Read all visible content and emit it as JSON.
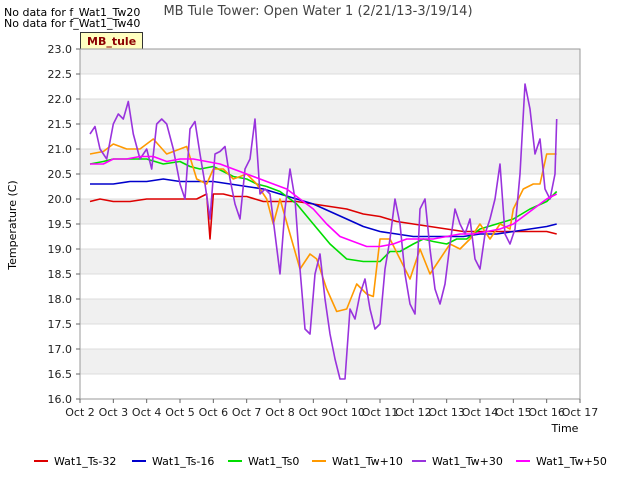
{
  "notes": [
    "No data for f_Wat1_Tw20",
    "No data for f_Wat1_Tw40"
  ],
  "badge": "MB_tule",
  "chart_data": {
    "type": "line",
    "title": "MB Tule Tower: Open Water 1 (2/21/13-3/19/14)",
    "xlabel": "Time",
    "ylabel": "Temperature (C)",
    "x_ticks": [
      "Oct 2",
      "Oct 3",
      "Oct 4",
      "Oct 5",
      "Oct 6",
      "Oct 7",
      "Oct 8",
      "Oct 9",
      "Oct 10",
      "Oct 11",
      "Oct 12",
      "Oct 13",
      "Oct 14",
      "Oct 15",
      "Oct 16",
      "Oct 17"
    ],
    "xlim": [
      2,
      17
    ],
    "ylim": [
      16.0,
      23.0
    ],
    "y_ticks": [
      16.0,
      16.5,
      17.0,
      17.5,
      18.0,
      18.5,
      19.0,
      19.5,
      20.0,
      20.5,
      21.0,
      21.5,
      22.0,
      22.5,
      23.0
    ],
    "grid": true,
    "legend_position": "bottom",
    "series": [
      {
        "name": "Wat1_Ts-32",
        "color": "#dd0000",
        "x": [
          2.3,
          2.6,
          3.0,
          3.5,
          4.0,
          4.5,
          5.0,
          5.5,
          5.8,
          5.9,
          6.0,
          6.3,
          6.6,
          7.0,
          7.5,
          8.0,
          8.5,
          9.0,
          9.5,
          10.0,
          10.5,
          11.0,
          11.5,
          12.0,
          12.5,
          13.0,
          13.5,
          14.0,
          14.5,
          15.0,
          15.5,
          16.0,
          16.3
        ],
        "values": [
          19.95,
          20.0,
          19.95,
          19.95,
          20.0,
          20.0,
          20.0,
          20.0,
          20.1,
          19.2,
          20.1,
          20.1,
          20.05,
          20.05,
          19.95,
          19.95,
          19.95,
          19.9,
          19.85,
          19.8,
          19.7,
          19.65,
          19.55,
          19.5,
          19.45,
          19.4,
          19.35,
          19.35,
          19.35,
          19.35,
          19.35,
          19.35,
          19.3
        ]
      },
      {
        "name": "Wat1_Ts-16",
        "color": "#0000cc",
        "x": [
          2.3,
          3.0,
          3.5,
          4.0,
          4.5,
          5.0,
          5.5,
          6.0,
          6.5,
          7.0,
          7.5,
          8.0,
          8.5,
          9.0,
          9.5,
          10.0,
          10.5,
          11.0,
          11.5,
          12.0,
          12.5,
          13.0,
          13.5,
          14.0,
          14.5,
          15.0,
          15.5,
          16.0,
          16.3
        ],
        "values": [
          20.3,
          20.3,
          20.35,
          20.35,
          20.4,
          20.35,
          20.35,
          20.35,
          20.3,
          20.25,
          20.2,
          20.1,
          20.0,
          19.9,
          19.75,
          19.6,
          19.45,
          19.35,
          19.3,
          19.25,
          19.25,
          19.25,
          19.25,
          19.3,
          19.3,
          19.35,
          19.4,
          19.45,
          19.5
        ]
      },
      {
        "name": "Wat1_Ts0",
        "color": "#00dd00",
        "x": [
          2.3,
          2.7,
          3.0,
          3.5,
          4.0,
          4.5,
          5.0,
          5.3,
          5.6,
          6.0,
          6.3,
          6.6,
          7.0,
          7.3,
          7.6,
          8.0,
          8.5,
          9.0,
          9.5,
          10.0,
          10.5,
          11.0,
          11.3,
          11.6,
          12.0,
          12.3,
          12.6,
          13.0,
          13.3,
          13.6,
          14.0,
          14.5,
          15.0,
          15.5,
          16.0,
          16.3
        ],
        "values": [
          20.7,
          20.75,
          20.8,
          20.8,
          20.8,
          20.7,
          20.75,
          20.65,
          20.6,
          20.65,
          20.55,
          20.45,
          20.4,
          20.3,
          20.25,
          20.15,
          19.9,
          19.5,
          19.1,
          18.8,
          18.75,
          18.75,
          18.95,
          18.95,
          19.1,
          19.2,
          19.15,
          19.1,
          19.2,
          19.2,
          19.4,
          19.5,
          19.6,
          19.8,
          19.95,
          20.15
        ]
      },
      {
        "name": "Wat1_Tw+10",
        "color": "#ff9900",
        "x": [
          2.3,
          2.7,
          3.0,
          3.4,
          3.8,
          4.2,
          4.6,
          5.0,
          5.2,
          5.5,
          5.8,
          6.0,
          6.3,
          6.6,
          7.0,
          7.3,
          7.6,
          7.8,
          8.0,
          8.3,
          8.6,
          8.9,
          9.1,
          9.4,
          9.7,
          10.0,
          10.3,
          10.6,
          10.8,
          11.0,
          11.3,
          11.6,
          11.9,
          12.2,
          12.5,
          12.8,
          13.1,
          13.4,
          13.7,
          14.0,
          14.3,
          14.6,
          14.9,
          15.0,
          15.3,
          15.6,
          15.8,
          16.0,
          16.3
        ],
        "values": [
          20.9,
          20.95,
          21.1,
          21.0,
          21.0,
          21.2,
          20.9,
          21.0,
          21.05,
          20.4,
          20.3,
          20.6,
          20.6,
          20.4,
          20.5,
          20.3,
          20.0,
          19.5,
          20.0,
          19.3,
          18.6,
          18.9,
          18.8,
          18.2,
          17.75,
          17.8,
          18.3,
          18.1,
          18.05,
          19.2,
          19.2,
          18.8,
          18.4,
          19.0,
          18.5,
          18.8,
          19.1,
          19.0,
          19.2,
          19.5,
          19.2,
          19.5,
          19.4,
          19.8,
          20.2,
          20.3,
          20.3,
          20.9,
          20.9
        ]
      },
      {
        "name": "Wat1_Tw+30",
        "color": "#9933dd",
        "x": [
          2.3,
          2.45,
          2.6,
          2.8,
          3.0,
          3.15,
          3.3,
          3.45,
          3.6,
          3.8,
          4.0,
          4.15,
          4.3,
          4.45,
          4.6,
          4.8,
          5.0,
          5.15,
          5.3,
          5.45,
          5.6,
          5.75,
          5.9,
          6.05,
          6.2,
          6.35,
          6.5,
          6.65,
          6.8,
          6.95,
          7.1,
          7.25,
          7.4,
          7.55,
          7.7,
          7.85,
          8.0,
          8.15,
          8.3,
          8.45,
          8.6,
          8.75,
          8.9,
          9.05,
          9.2,
          9.35,
          9.5,
          9.65,
          9.8,
          9.95,
          10.1,
          10.25,
          10.4,
          10.55,
          10.7,
          10.85,
          11.0,
          11.15,
          11.3,
          11.45,
          11.6,
          11.75,
          11.9,
          12.05,
          12.2,
          12.35,
          12.5,
          12.65,
          12.8,
          12.95,
          13.1,
          13.25,
          13.4,
          13.55,
          13.7,
          13.85,
          14.0,
          14.15,
          14.3,
          14.45,
          14.6,
          14.75,
          14.9,
          15.05,
          15.2,
          15.35,
          15.5,
          15.65,
          15.8,
          15.95,
          16.1,
          16.25,
          16.3
        ],
        "values": [
          21.3,
          21.45,
          21.0,
          20.8,
          21.5,
          21.7,
          21.6,
          21.95,
          21.3,
          20.8,
          21.0,
          20.6,
          21.5,
          21.6,
          21.5,
          21.0,
          20.3,
          20.0,
          21.4,
          21.55,
          20.9,
          20.3,
          19.6,
          20.9,
          20.95,
          21.05,
          20.4,
          19.9,
          19.6,
          20.6,
          20.8,
          21.6,
          20.1,
          20.2,
          20.1,
          19.3,
          18.5,
          19.8,
          20.6,
          20.0,
          18.6,
          17.4,
          17.3,
          18.5,
          18.9,
          18.0,
          17.3,
          16.8,
          16.4,
          16.4,
          17.8,
          17.6,
          18.1,
          18.4,
          17.8,
          17.4,
          17.5,
          18.6,
          19.2,
          20.0,
          19.5,
          18.5,
          17.9,
          17.7,
          19.8,
          20.0,
          19.0,
          18.2,
          17.9,
          18.3,
          19.1,
          19.8,
          19.5,
          19.3,
          19.6,
          18.8,
          18.6,
          19.3,
          19.6,
          20.0,
          20.7,
          19.3,
          19.1,
          19.4,
          20.5,
          22.3,
          21.8,
          20.9,
          21.2,
          20.2,
          20.0,
          20.5,
          21.6
        ]
      },
      {
        "name": "Wat1_Tw+50",
        "color": "#ff00ff",
        "x": [
          2.3,
          2.7,
          3.0,
          3.4,
          3.8,
          4.2,
          4.6,
          5.0,
          5.4,
          5.8,
          6.2,
          6.6,
          7.0,
          7.4,
          7.8,
          8.2,
          8.6,
          9.0,
          9.4,
          9.8,
          10.2,
          10.6,
          11.0,
          11.4,
          11.8,
          12.2,
          12.6,
          13.0,
          13.4,
          13.8,
          14.2,
          14.6,
          15.0,
          15.4,
          15.8,
          16.0,
          16.3
        ],
        "values": [
          20.7,
          20.7,
          20.8,
          20.8,
          20.85,
          20.85,
          20.75,
          20.8,
          20.8,
          20.75,
          20.7,
          20.6,
          20.5,
          20.4,
          20.3,
          20.2,
          20.0,
          19.8,
          19.5,
          19.25,
          19.15,
          19.05,
          19.05,
          19.1,
          19.2,
          19.2,
          19.2,
          19.25,
          19.3,
          19.3,
          19.35,
          19.4,
          19.5,
          19.7,
          19.9,
          20.0,
          20.1
        ]
      }
    ]
  }
}
